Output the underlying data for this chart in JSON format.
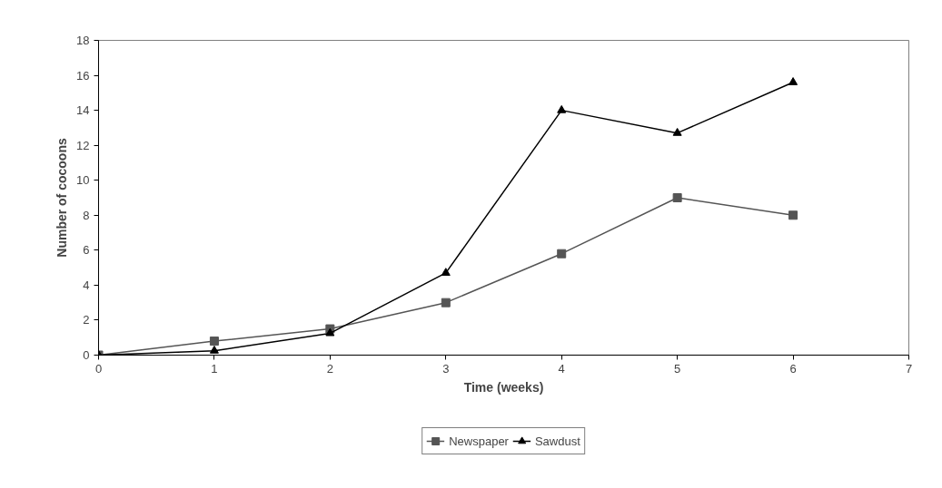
{
  "chart_data": {
    "type": "line",
    "xlabel": "Time (weeks)",
    "ylabel": "Number of cocoons",
    "x": [
      0,
      1,
      2,
      3,
      4,
      5,
      6
    ],
    "series": [
      {
        "name": "Newspaper",
        "color": "#555555",
        "marker": "square",
        "values": [
          0,
          0.8,
          1.5,
          3,
          5.8,
          9,
          8
        ]
      },
      {
        "name": "Sawdust",
        "color": "#000000",
        "marker": "triangle",
        "values": [
          0,
          0.25,
          1.25,
          4.7,
          14,
          12.7,
          15.6
        ]
      }
    ],
    "xlim": [
      0,
      7
    ],
    "xticks": [
      0,
      1,
      2,
      3,
      4,
      5,
      6,
      7
    ],
    "ylim": [
      0,
      18
    ],
    "yticks": [
      0,
      2,
      4,
      6,
      8,
      10,
      12,
      14,
      16,
      18
    ],
    "grid": false,
    "legend": "bottom",
    "line_style": "solid"
  }
}
